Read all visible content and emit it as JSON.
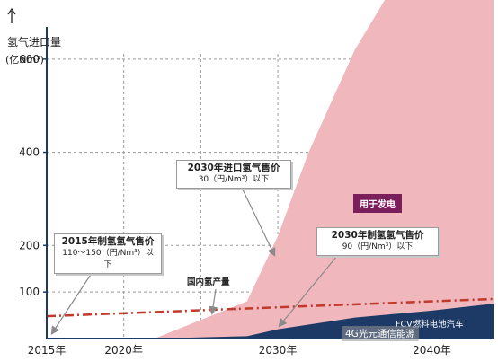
{
  "chart_data": {
    "type": "area",
    "title": "",
    "ylabel": "氢气进口量",
    "yunit": "(亿Nm³)",
    "y_ticks": [
      "100",
      "200",
      "400",
      "600"
    ],
    "x_ticks": [
      "2015年",
      "2020年",
      "2030年",
      "2040年"
    ],
    "xlim": [
      2015,
      2044
    ],
    "ylim": [
      0,
      700
    ],
    "series": [
      {
        "name": "用于发电",
        "color": "#f0b7bd",
        "points": [
          [
            2015,
            0
          ],
          [
            2022,
            0
          ],
          [
            2028,
            80
          ],
          [
            2030,
            220
          ],
          [
            2032,
            400
          ],
          [
            2035,
            620
          ],
          [
            2037,
            730
          ],
          [
            2044,
            730
          ]
        ]
      },
      {
        "name": "FCV燃料电池汽车",
        "color": "#1d3a66",
        "points": [
          [
            2015,
            0
          ],
          [
            2022,
            0
          ],
          [
            2028,
            5
          ],
          [
            2030,
            20
          ],
          [
            2035,
            45
          ],
          [
            2040,
            60
          ],
          [
            2044,
            75
          ]
        ]
      },
      {
        "name": "国内氢产量",
        "color": "#c0392b",
        "style": "dash-dot",
        "points": [
          [
            2015,
            48
          ],
          [
            2044,
            85
          ]
        ]
      }
    ],
    "annotations": {
      "price_2015": {
        "title": "2015年制氢氢气售价",
        "sub": "110～150（円/Nm³）以下"
      },
      "price_2030_import": {
        "title": "2030年进口氢气售价",
        "sub": "30（円/Nm³）以下"
      },
      "price_2030_made": {
        "title": "2030年制氢氢气售价",
        "sub": "90（円/Nm³）以下"
      },
      "domestic_output": "国内氢产量",
      "power_use": "用于发电",
      "fcv": "FCV燃料电池汽车"
    },
    "grid": true
  },
  "watermark": "4G光元通信能源"
}
